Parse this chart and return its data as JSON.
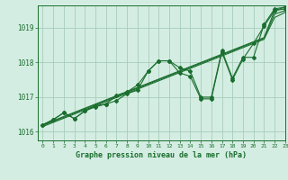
{
  "bg_color": "#d4ede2",
  "grid_color": "#a8ccbc",
  "line_color": "#1a6e2e",
  "title": "Graphe pression niveau de la mer (hPa)",
  "xlim": [
    -0.5,
    23
  ],
  "ylim": [
    1015.75,
    1019.65
  ],
  "yticks": [
    1016,
    1017,
    1018,
    1019
  ],
  "xticks": [
    0,
    1,
    2,
    3,
    4,
    5,
    6,
    7,
    8,
    9,
    10,
    11,
    12,
    13,
    14,
    15,
    16,
    17,
    18,
    19,
    20,
    21,
    22,
    23
  ],
  "series_wavy_1": [
    1016.2,
    1016.35,
    1016.55,
    1016.38,
    1016.6,
    1016.75,
    1016.8,
    1017.05,
    1017.15,
    1017.35,
    1017.75,
    1018.05,
    1018.05,
    1017.85,
    1017.75,
    1017.0,
    1017.0,
    1018.35,
    1017.55,
    1018.15,
    1018.15,
    1019.1,
    1019.55,
    1019.6
  ],
  "series_wavy_2": [
    1016.2,
    1016.35,
    1016.55,
    1016.38,
    1016.6,
    1016.72,
    1016.8,
    1016.9,
    1017.1,
    1017.2,
    1017.75,
    1018.05,
    1018.05,
    1017.7,
    1017.6,
    1016.95,
    1016.95,
    1018.3,
    1017.5,
    1018.1,
    1018.55,
    1019.05,
    1019.5,
    1019.55
  ],
  "series_smooth_1": [
    1016.2,
    1016.32,
    1016.44,
    1016.56,
    1016.68,
    1016.8,
    1016.92,
    1017.04,
    1017.16,
    1017.28,
    1017.4,
    1017.52,
    1017.64,
    1017.76,
    1017.88,
    1018.0,
    1018.12,
    1018.24,
    1018.36,
    1018.48,
    1018.6,
    1018.72,
    1019.5,
    1019.6
  ],
  "series_smooth_2": [
    1016.18,
    1016.3,
    1016.42,
    1016.54,
    1016.66,
    1016.78,
    1016.9,
    1017.02,
    1017.14,
    1017.26,
    1017.38,
    1017.5,
    1017.62,
    1017.74,
    1017.86,
    1017.98,
    1018.1,
    1018.22,
    1018.34,
    1018.46,
    1018.58,
    1018.7,
    1019.4,
    1019.5
  ],
  "series_smooth_3": [
    1016.15,
    1016.27,
    1016.39,
    1016.51,
    1016.63,
    1016.75,
    1016.87,
    1016.99,
    1017.11,
    1017.23,
    1017.35,
    1017.47,
    1017.59,
    1017.71,
    1017.83,
    1017.95,
    1018.07,
    1018.19,
    1018.31,
    1018.43,
    1018.55,
    1018.67,
    1019.3,
    1019.45
  ]
}
